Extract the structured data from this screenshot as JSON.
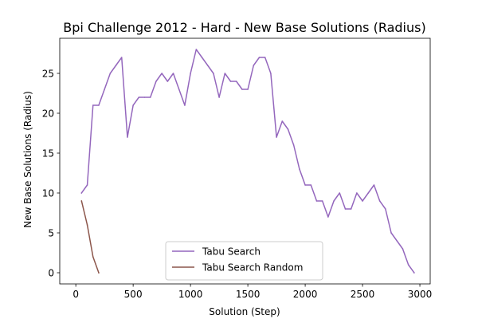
{
  "chart_data": {
    "type": "line",
    "title": "Bpi Challenge 2012 - Hard - New Base Solutions (Radius)",
    "xlabel": "Solution (Step)",
    "ylabel": "New Base Solutions (Radius)",
    "xlim": [
      -140,
      3090
    ],
    "ylim": [
      -1.4,
      29.4
    ],
    "xticks": [
      0,
      500,
      1000,
      1500,
      2000,
      2500,
      3000
    ],
    "yticks": [
      0,
      5,
      10,
      15,
      20,
      25
    ],
    "grid": false,
    "legend": "lower center",
    "series": [
      {
        "name": "Tabu Search",
        "color": "#9467bd",
        "x": [
          50,
          100,
          150,
          200,
          250,
          300,
          350,
          400,
          450,
          500,
          550,
          600,
          650,
          700,
          750,
          800,
          850,
          900,
          950,
          1000,
          1050,
          1100,
          1150,
          1200,
          1250,
          1300,
          1350,
          1400,
          1450,
          1500,
          1550,
          1600,
          1650,
          1700,
          1750,
          1800,
          1850,
          1900,
          1950,
          2000,
          2050,
          2100,
          2150,
          2200,
          2250,
          2300,
          2350,
          2400,
          2450,
          2500,
          2550,
          2600,
          2650,
          2700,
          2750,
          2800,
          2850,
          2900,
          2950
        ],
        "y": [
          10,
          11,
          21,
          21,
          23,
          25,
          26,
          27,
          17,
          21,
          22,
          22,
          22,
          24,
          25,
          24,
          25,
          23,
          21,
          25,
          28,
          27,
          26,
          25,
          22,
          25,
          24,
          24,
          23,
          23,
          26,
          27,
          27,
          25,
          17,
          19,
          18,
          16,
          13,
          11,
          11,
          9,
          9,
          7,
          9,
          10,
          8,
          8,
          10,
          9,
          10,
          11,
          9,
          8,
          5,
          4,
          3,
          1,
          0
        ]
      },
      {
        "name": "Tabu Search Random",
        "color": "#8c564b",
        "x": [
          50,
          100,
          150,
          200
        ],
        "y": [
          9,
          6,
          2,
          0
        ]
      }
    ]
  }
}
